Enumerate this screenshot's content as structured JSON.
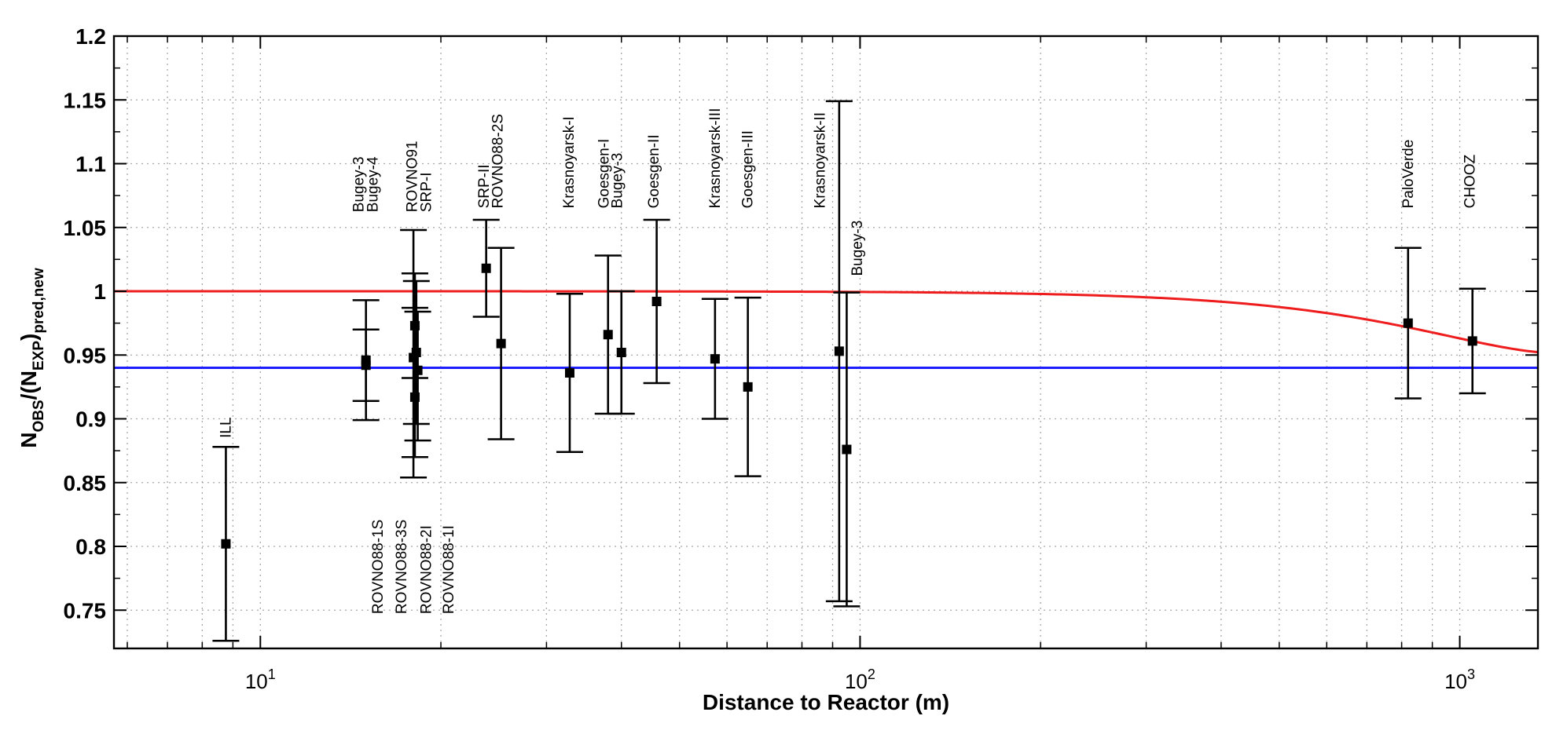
{
  "chart_data": {
    "type": "scatter",
    "title": "",
    "xlabel": "Distance to Reactor (m)",
    "ylabel": "N_OBS/(N_EXP)_pred,new",
    "ylabel_parts": {
      "n": "N",
      "obs": "OBS",
      "mid": "/(N",
      "exp": "EXP",
      "close": ")",
      "pred": "pred,new"
    },
    "xscale": "log",
    "xlim": [
      5.7,
      1350
    ],
    "ylim": [
      0.72,
      1.2
    ],
    "yticks": [
      0.75,
      0.8,
      0.85,
      0.9,
      0.95,
      1,
      1.05,
      1.1,
      1.15,
      1.2
    ],
    "ytick_labels": [
      "0.75",
      "0.8",
      "0.85",
      "0.9",
      "0.95",
      "1",
      "1.05",
      "1.1",
      "1.15",
      "1.2"
    ],
    "xticks": [
      {
        "value": 10,
        "base": "10",
        "exp": "1"
      },
      {
        "value": 100,
        "base": "10",
        "exp": "2"
      },
      {
        "value": 1000,
        "base": "10",
        "exp": "3"
      }
    ],
    "grid": true,
    "points": [
      {
        "x": 8.76,
        "y": 0.802,
        "yerr_low": 0.726,
        "yerr_high": 0.878
      },
      {
        "x": 15.0,
        "y": 0.946,
        "yerr_low": 0.899,
        "yerr_high": 0.993
      },
      {
        "x": 15.0,
        "y": 0.942,
        "yerr_low": 0.914,
        "yerr_high": 0.97
      },
      {
        "x": 18.0,
        "y": 0.948,
        "yerr_low": 0.854,
        "yerr_high": 1.048
      },
      {
        "x": 18.1,
        "y": 0.973,
        "yerr_low": 0.932,
        "yerr_high": 1.014
      },
      {
        "x": 18.2,
        "y": 0.952,
        "yerr_low": 0.896,
        "yerr_high": 1.008
      },
      {
        "x": 18.1,
        "y": 0.917,
        "yerr_low": 0.87,
        "yerr_high": 0.987
      },
      {
        "x": 18.3,
        "y": 0.938,
        "yerr_low": 0.883,
        "yerr_high": 0.984
      },
      {
        "x": 23.8,
        "y": 1.018,
        "yerr_low": 0.98,
        "yerr_high": 1.056
      },
      {
        "x": 25.2,
        "y": 0.959,
        "yerr_low": 0.884,
        "yerr_high": 1.034
      },
      {
        "x": 32.8,
        "y": 0.936,
        "yerr_low": 0.874,
        "yerr_high": 0.998
      },
      {
        "x": 38.0,
        "y": 0.966,
        "yerr_low": 0.904,
        "yerr_high": 1.028
      },
      {
        "x": 40.0,
        "y": 0.952,
        "yerr_low": 0.904,
        "yerr_high": 1.0
      },
      {
        "x": 45.8,
        "y": 0.992,
        "yerr_low": 0.928,
        "yerr_high": 1.056
      },
      {
        "x": 57.3,
        "y": 0.947,
        "yerr_low": 0.9,
        "yerr_high": 0.994
      },
      {
        "x": 65.0,
        "y": 0.925,
        "yerr_low": 0.855,
        "yerr_high": 0.995
      },
      {
        "x": 92.3,
        "y": 0.953,
        "yerr_low": 0.757,
        "yerr_high": 1.149
      },
      {
        "x": 95.0,
        "y": 0.876,
        "yerr_low": 0.753,
        "yerr_high": 0.999
      },
      {
        "x": 820,
        "y": 0.975,
        "yerr_low": 0.916,
        "yerr_high": 1.034
      },
      {
        "x": 1050,
        "y": 0.961,
        "yerr_low": 0.92,
        "yerr_high": 1.002
      }
    ],
    "lines": [
      {
        "color": "#ee1c1c",
        "kind": "oscillation",
        "plateau": 1.0,
        "amplitude": 0.0488
      },
      {
        "color": "#1c1cff",
        "kind": "constant",
        "y": 0.94
      }
    ],
    "annotations": [
      {
        "text": "ILL",
        "x": 8.76,
        "y": 0.885
      },
      {
        "text": "Bugey-3",
        "x": 14.6,
        "y": 1.062
      },
      {
        "text": "Bugey-4",
        "x": 15.4,
        "y": 1.062
      },
      {
        "text": "ROVNO91",
        "x": 17.9,
        "y": 1.062
      },
      {
        "text": "SRP-I",
        "x": 18.9,
        "y": 1.062
      },
      {
        "text": "SRP-II",
        "x": 23.6,
        "y": 1.065
      },
      {
        "text": "ROVNO88-2S",
        "x": 24.9,
        "y": 1.065
      },
      {
        "text": "Krasnoyarsk-I",
        "x": 32.7,
        "y": 1.065
      },
      {
        "text": "Goesgen-I",
        "x": 37.4,
        "y": 1.065
      },
      {
        "text": "Bugey-3",
        "x": 39.4,
        "y": 1.065
      },
      {
        "text": "Goesgen-II",
        "x": 45.3,
        "y": 1.065
      },
      {
        "text": "Krasnoyarsk-III",
        "x": 57.3,
        "y": 1.065
      },
      {
        "text": "Goesgen-III",
        "x": 65.0,
        "y": 1.065
      },
      {
        "text": "Krasnoyarsk-II",
        "x": 85.8,
        "y": 1.065
      },
      {
        "text": "Bugey-3",
        "x": 99.0,
        "y": 1.012
      },
      {
        "text": "PaloVerde",
        "x": 820,
        "y": 1.065
      },
      {
        "text": "CHOOZ",
        "x": 1040,
        "y": 1.065
      },
      {
        "text": "ROVNO88-1S",
        "x": 15.7,
        "y": 0.747
      },
      {
        "text": "ROVNO88-3S",
        "x": 17.2,
        "y": 0.747
      },
      {
        "text": "ROVNO88-2I",
        "x": 18.9,
        "y": 0.747
      },
      {
        "text": "ROVNO88-1I",
        "x": 20.6,
        "y": 0.747
      }
    ]
  }
}
